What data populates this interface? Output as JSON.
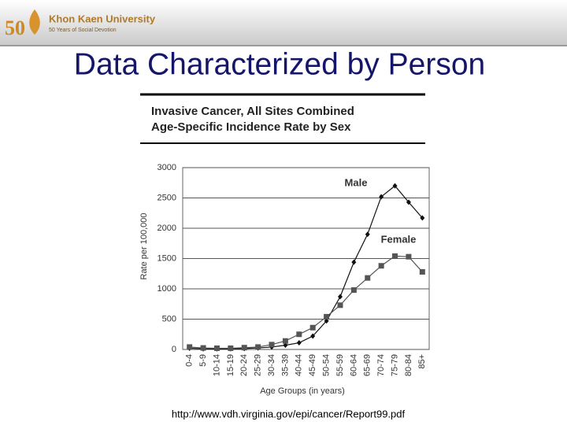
{
  "logo": {
    "number": "50",
    "name": "Khon Kaen University",
    "motto": "50 Years of Social Devotion"
  },
  "slide": {
    "title": "Data Characterized by Person",
    "source": "http://www.vdh.virginia.gov/epi/cancer/Report99.pdf"
  },
  "chart_data": {
    "type": "line",
    "title": "Invasive Cancer, All Sites Combined",
    "subtitle": "Age-Specific Incidence Rate by Sex",
    "x_label": "Age Groups (in years)",
    "y_label": "Rate per 100,000",
    "categories": [
      "0-4",
      "5-9",
      "10-14",
      "15-19",
      "20-24",
      "25-29",
      "30-34",
      "35-39",
      "40-44",
      "45-49",
      "50-54",
      "55-59",
      "60-64",
      "65-69",
      "70-74",
      "75-79",
      "80-84",
      "85+"
    ],
    "series": [
      {
        "name": "Male",
        "color": "#111111",
        "values": [
          20,
          10,
          10,
          10,
          15,
          25,
          40,
          70,
          110,
          220,
          470,
          870,
          1440,
          1900,
          2520,
          2700,
          2430,
          2170
        ]
      },
      {
        "name": "Female",
        "color": "#555555",
        "values": [
          40,
          25,
          20,
          20,
          30,
          40,
          80,
          140,
          250,
          360,
          540,
          730,
          980,
          1180,
          1380,
          1540,
          1530,
          1280
        ]
      }
    ],
    "ylim": [
      0,
      3000
    ],
    "yticks": [
      0,
      500,
      1000,
      1500,
      2000,
      2500,
      3000
    ],
    "grid": true
  }
}
